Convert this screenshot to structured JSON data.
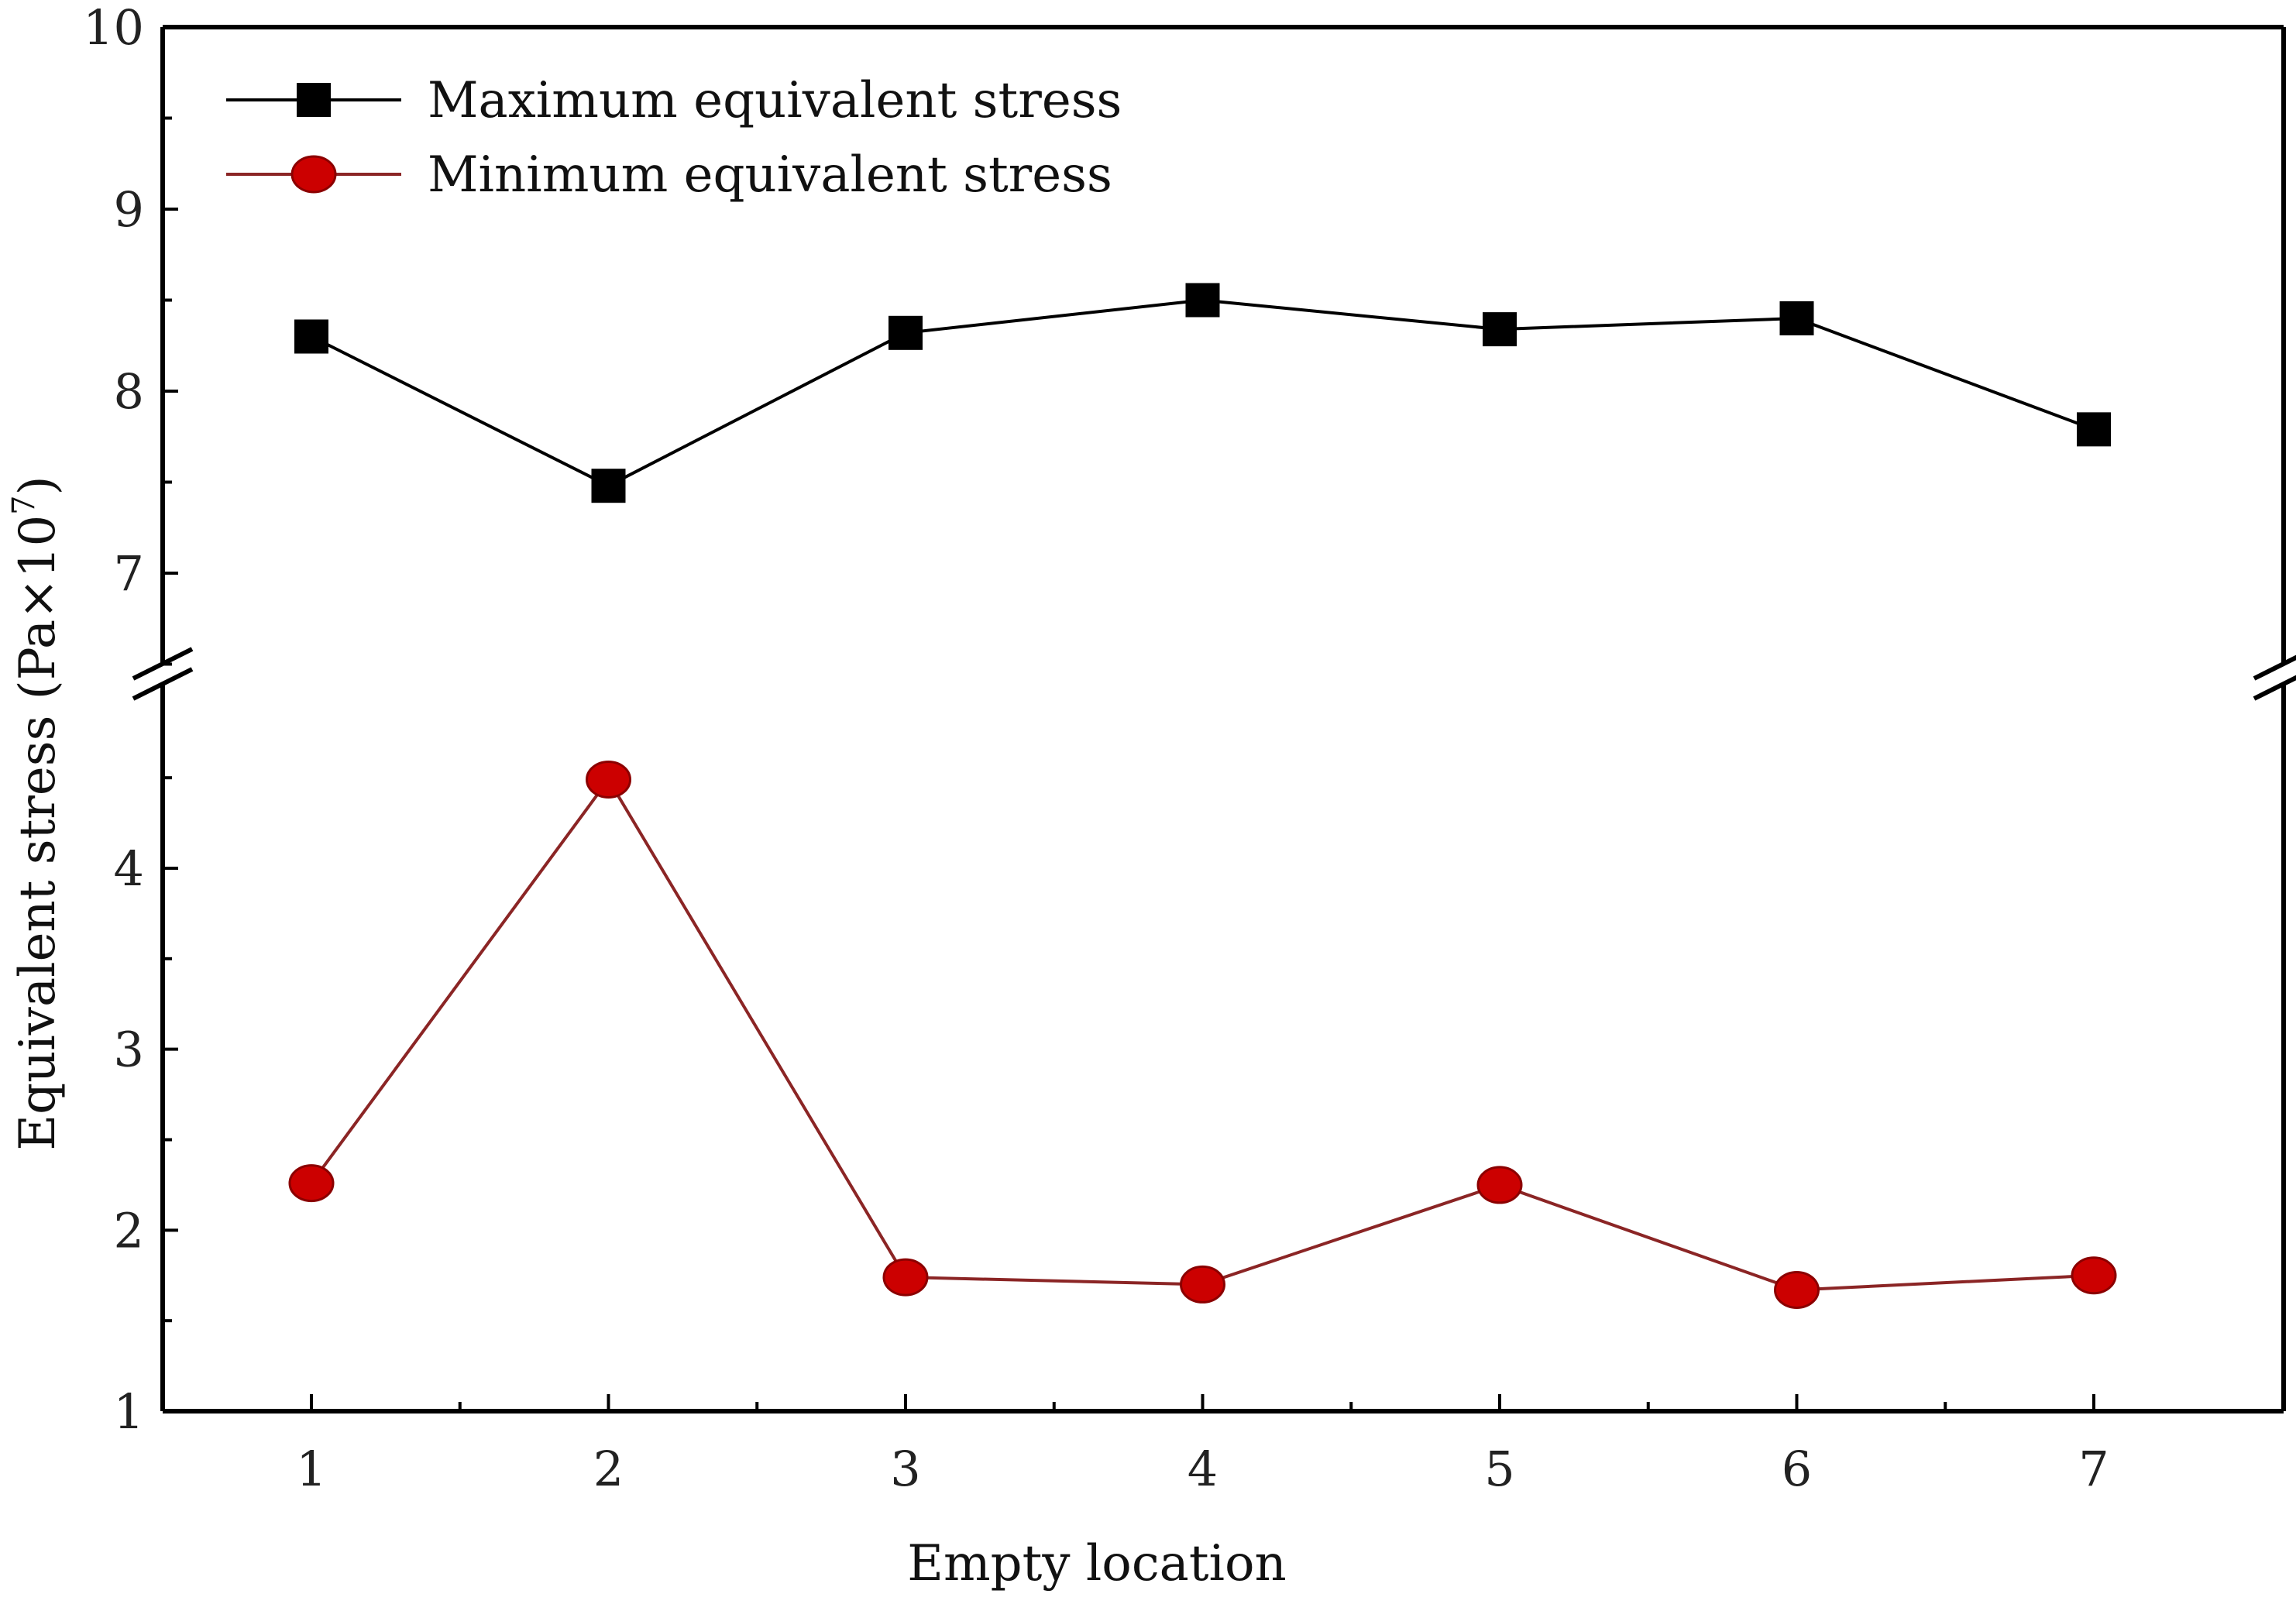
{
  "chart_data": {
    "type": "line",
    "title": "",
    "xlabel": "Empty location",
    "ylabel": "Equivalent stress (Pa×10",
    "ylabel_superscript": "7",
    "ylabel_close": ")",
    "x": [
      1,
      2,
      3,
      4,
      5,
      6,
      7
    ],
    "x_ticks": [
      "1",
      "2",
      "3",
      "4",
      "5",
      "6",
      "7"
    ],
    "y_axis_break": true,
    "y_ranges": [
      [
        1,
        4.9
      ],
      [
        6.5,
        10
      ]
    ],
    "y_ticks": [
      "1",
      "2",
      "3",
      "4",
      "7",
      "8",
      "9",
      "10"
    ],
    "legend_position": "top-left",
    "series": [
      {
        "name": "Maximum equivalent stress",
        "marker": "square",
        "color": "#000000",
        "values": [
          8.3,
          7.48,
          8.32,
          8.5,
          8.34,
          8.4,
          7.79
        ]
      },
      {
        "name": "Minimum equivalent stress",
        "marker": "circle",
        "color": "#cc0000",
        "line_color": "#8b2525",
        "values": [
          2.26,
          4.49,
          1.74,
          1.7,
          2.25,
          1.67,
          1.75
        ]
      }
    ]
  }
}
